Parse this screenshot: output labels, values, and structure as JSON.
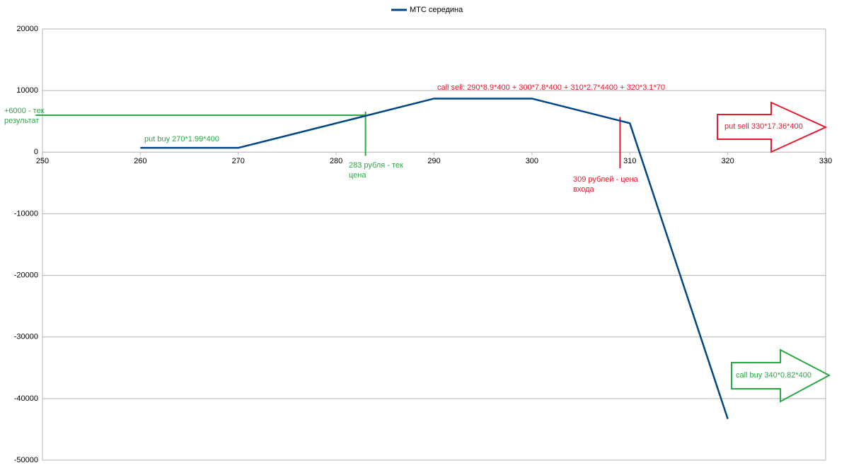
{
  "chart_data": {
    "type": "line",
    "x": [
      260,
      270,
      290,
      300,
      310,
      320
    ],
    "series": [
      {
        "name": "МТС середина",
        "color": "#004586",
        "values": [
          700,
          700,
          8700,
          8700,
          4700,
          -43300
        ]
      }
    ],
    "xlim": [
      250,
      330
    ],
    "xticks": [
      250,
      260,
      270,
      280,
      290,
      300,
      310,
      320,
      330
    ],
    "ylim": [
      -50000,
      20000
    ],
    "yticks": [
      20000,
      10000,
      0,
      -10000,
      -20000,
      -30000,
      -40000,
      -50000
    ],
    "grid": true,
    "legend": "top",
    "reference_lines": [
      {
        "orientation": "horizontal",
        "value": 6000,
        "range": [
          249.3,
          283
        ],
        "color": "#2aa845"
      },
      {
        "orientation": "vertical",
        "value": 283,
        "range": [
          -600,
          6600
        ],
        "color": "#2aa845"
      },
      {
        "orientation": "vertical",
        "value": 309,
        "range": [
          -2600,
          5700
        ],
        "color": "#e8192c"
      }
    ],
    "annotations": [
      {
        "lines": [
          "+6000 - тек",
          "результат"
        ]
      },
      {
        "lines": [
          "put buy 270*1.99*400"
        ]
      },
      {
        "lines": [
          "283 рубля - тек",
          "цена"
        ]
      },
      {
        "lines": [
          "call sell: 290*8.9*400 + 300*7.8*400 + 310*2.7*4400 + 320*3.1*70"
        ]
      },
      {
        "lines": [
          "309 рублей - цена",
          "входа"
        ]
      },
      {
        "lines": [
          "put sell 330*17.36*400"
        ]
      },
      {
        "lines": [
          "call buy 340*0.82*400"
        ]
      }
    ]
  }
}
